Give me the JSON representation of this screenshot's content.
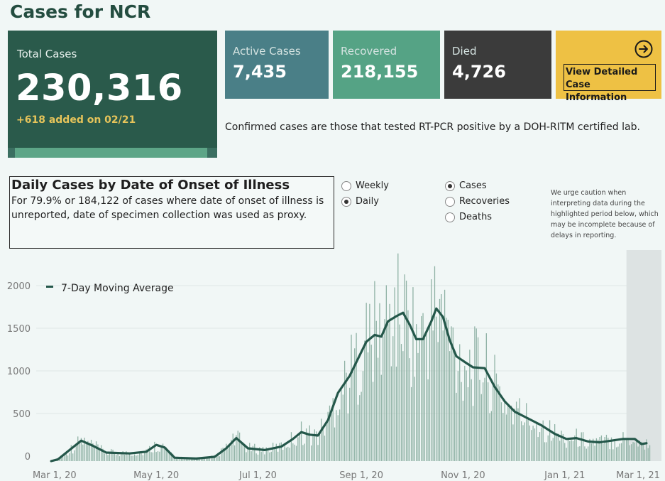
{
  "header": {
    "title": "Cases for NCR"
  },
  "summary": {
    "total_label": "Total Cases",
    "total_value": "230,316",
    "added_text": "+618 added on 02/21",
    "total_bar_fraction": 0.95,
    "active_label": "Active Cases",
    "active_value": "7,435",
    "recovered_label": "Recovered",
    "recovered_value": "218,155",
    "died_label": "Died",
    "died_value": "4,726",
    "cta_label_1": "View Detailed",
    "cta_label_2": "Case Information",
    "cta_icon": "arrow-right-circle-icon"
  },
  "confirm_note": "Confirmed cases are those that tested RT-PCR positive by a DOH-RITM certified lab.",
  "description": {
    "heading": "Daily Cases by Date of Onset of Illness",
    "body": "For 79.9% or 184,122 of cases where date of onset of illness is unreported, date of specimen collection was used as proxy."
  },
  "controls": {
    "interval": {
      "options": [
        "Weekly",
        "Daily"
      ],
      "selected": "Daily"
    },
    "metric": {
      "options": [
        "Cases",
        "Recoveries",
        "Deaths"
      ],
      "selected": "Cases"
    }
  },
  "caution_note": "We urge caution when interpreting data during the highlighted period below, which may be incomplete because of delays in reporting.",
  "colors": {
    "total_tile": "#2a5a4b",
    "active_tile": "#4a7f87",
    "recovered_tile": "#55a385",
    "died_tile": "#3b3b3b",
    "cta_tile": "#eec144",
    "bars": "#8fb2a5",
    "moving_average": "#24574a",
    "highlight": "#dde3e3"
  },
  "chart_data": {
    "type": "bar",
    "x_start": "2020-02-19",
    "x_end": "2021-02-28",
    "x_ticks": [
      "Mar 1, 20",
      "May 1, 20",
      "Jul 1, 20",
      "Sep 1, 20",
      "Nov 1, 20",
      "Jan 1, 21",
      "Mar 1, 21"
    ],
    "y_ticks": [
      0,
      500,
      1000,
      1500,
      2000
    ],
    "ylim": [
      0,
      2400
    ],
    "grid": true,
    "legend": {
      "label": "7-Day Moving Average",
      "placement": "top-left"
    },
    "highlight_period": [
      "2021-02-07",
      "2021-02-28"
    ],
    "moving_average": {
      "name": "7-Day Moving Average",
      "points": [
        [
          "2020-02-28",
          0
        ],
        [
          "2020-03-03",
          20
        ],
        [
          "2020-03-10",
          130
        ],
        [
          "2020-03-17",
          240
        ],
        [
          "2020-03-24",
          180
        ],
        [
          "2020-04-01",
          100
        ],
        [
          "2020-04-15",
          90
        ],
        [
          "2020-04-25",
          110
        ],
        [
          "2020-05-01",
          190
        ],
        [
          "2020-05-06",
          160
        ],
        [
          "2020-05-12",
          40
        ],
        [
          "2020-05-25",
          30
        ],
        [
          "2020-06-05",
          50
        ],
        [
          "2020-06-12",
          150
        ],
        [
          "2020-06-18",
          270
        ],
        [
          "2020-06-25",
          150
        ],
        [
          "2020-07-05",
          130
        ],
        [
          "2020-07-15",
          170
        ],
        [
          "2020-07-22",
          260
        ],
        [
          "2020-07-27",
          340
        ],
        [
          "2020-08-01",
          310
        ],
        [
          "2020-08-06",
          300
        ],
        [
          "2020-08-12",
          480
        ],
        [
          "2020-08-18",
          800
        ],
        [
          "2020-08-25",
          1000
        ],
        [
          "2020-08-30",
          1200
        ],
        [
          "2020-09-04",
          1400
        ],
        [
          "2020-09-09",
          1480
        ],
        [
          "2020-09-13",
          1460
        ],
        [
          "2020-09-17",
          1640
        ],
        [
          "2020-09-22",
          1700
        ],
        [
          "2020-09-26",
          1740
        ],
        [
          "2020-09-30",
          1600
        ],
        [
          "2020-10-04",
          1430
        ],
        [
          "2020-10-08",
          1430
        ],
        [
          "2020-10-13",
          1640
        ],
        [
          "2020-10-16",
          1790
        ],
        [
          "2020-10-20",
          1690
        ],
        [
          "2020-10-24",
          1420
        ],
        [
          "2020-10-28",
          1230
        ],
        [
          "2020-11-03",
          1150
        ],
        [
          "2020-11-07",
          1100
        ],
        [
          "2020-11-14",
          1090
        ],
        [
          "2020-11-20",
          870
        ],
        [
          "2020-11-26",
          700
        ],
        [
          "2020-12-02",
          580
        ],
        [
          "2020-12-10",
          500
        ],
        [
          "2020-12-18",
          420
        ],
        [
          "2020-12-26",
          320
        ],
        [
          "2021-01-02",
          260
        ],
        [
          "2021-01-08",
          270
        ],
        [
          "2021-01-15",
          230
        ],
        [
          "2021-01-22",
          220
        ],
        [
          "2021-01-29",
          240
        ],
        [
          "2021-02-05",
          260
        ],
        [
          "2021-02-12",
          260
        ],
        [
          "2021-02-16",
          200
        ],
        [
          "2021-02-19",
          210
        ]
      ]
    }
  }
}
